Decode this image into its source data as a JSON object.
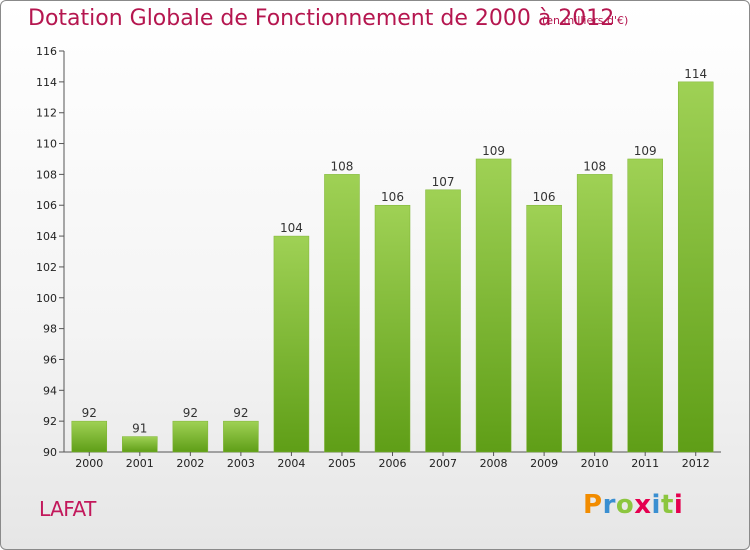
{
  "title": "Dotation Globale de Fonctionnement de 2000 à 2012",
  "subtitle": "(en milliers d'€)",
  "commune": "LAFAT",
  "logo": {
    "letters": [
      "P",
      "r",
      "o",
      "x",
      "i",
      "t",
      "i"
    ],
    "colors": [
      "#f28c00",
      "#3a8fd1",
      "#8cc63f",
      "#e5004f",
      "#3a8fd1",
      "#8cc63f",
      "#e5004f"
    ]
  },
  "colors": {
    "bar_top": "#9fd155",
    "bar_bottom": "#5f9e17",
    "title": "#b5164f"
  },
  "chart_data": {
    "type": "bar",
    "categories": [
      "2000",
      "2001",
      "2002",
      "2003",
      "2004",
      "2005",
      "2006",
      "2007",
      "2008",
      "2009",
      "2010",
      "2011",
      "2012"
    ],
    "values": [
      92,
      91,
      92,
      92,
      104,
      108,
      106,
      107,
      109,
      106,
      108,
      109,
      114
    ],
    "ylim": [
      90,
      116
    ],
    "yticks": [
      90,
      92,
      94,
      96,
      98,
      100,
      102,
      104,
      106,
      108,
      110,
      112,
      114,
      116
    ],
    "grid": false
  }
}
